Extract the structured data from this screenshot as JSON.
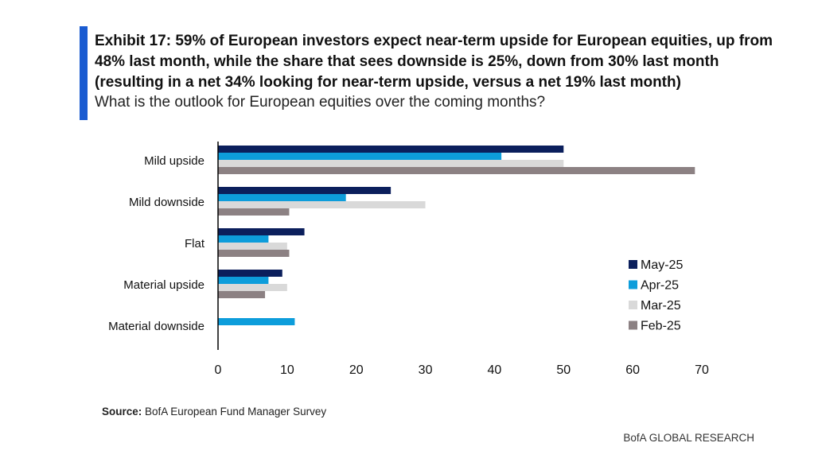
{
  "header": {
    "title": "Exhibit 17: 59% of European investors expect near-term upside for European equities, up from 48% last month, while the share that sees downside is 25%, down from 30% last month (resulting in a net 34% looking for near-term upside, versus a net 19% last month)",
    "subtitle": "What is the outlook for European equities over the coming months?"
  },
  "footer": {
    "source_label": "Source:",
    "source_text": "BofA European Fund Manager Survey",
    "brand": "BofA GLOBAL RESEARCH"
  },
  "chart_data": {
    "type": "bar",
    "orientation": "horizontal",
    "categories": [
      "Mild upside",
      "Mild downside",
      "Flat",
      "Material upside",
      "Material downside"
    ],
    "series": [
      {
        "name": "May-25",
        "color": "#0b1f5c",
        "values": [
          50,
          25,
          12.5,
          9.3,
          0
        ]
      },
      {
        "name": "Apr-25",
        "color": "#0d9ddb",
        "values": [
          41,
          18.5,
          7.3,
          7.3,
          11.1
        ]
      },
      {
        "name": "Mar-25",
        "color": "#d9d9d9",
        "values": [
          50,
          30,
          10,
          10,
          0
        ]
      },
      {
        "name": "Feb-25",
        "color": "#8c8183",
        "values": [
          69,
          10.3,
          10.3,
          6.8,
          0
        ]
      }
    ],
    "xlim": [
      0,
      70
    ],
    "xticks": [
      0,
      10,
      20,
      30,
      40,
      50,
      60,
      70
    ],
    "legend": "right",
    "grid": false,
    "xlabel": "",
    "ylabel": ""
  }
}
